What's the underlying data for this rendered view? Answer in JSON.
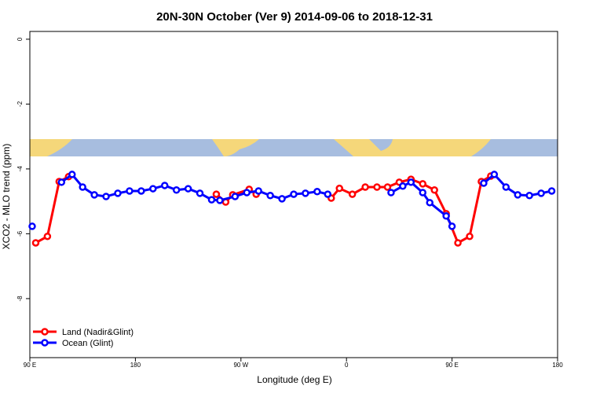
{
  "chart_data": {
    "type": "line",
    "title": "20N-30N October (Ver 9)   2014-09-06 to 2018-12-31",
    "x_label": "Longitude (deg E)",
    "y_label": "XCO2 - MLO trend (ppm)",
    "xlim": [
      90,
      540
    ],
    "xticks": [
      {
        "value": 90,
        "label": "90 E"
      },
      180,
      {
        "value": 270,
        "label": "90 W"
      },
      {
        "value": 360,
        "label": "0"
      },
      {
        "value": 450,
        "label": "90 E"
      },
      {
        "value": 540,
        "label": "180"
      }
    ],
    "ylim": [
      -9.82,
      0.24
    ],
    "yticks": [
      0,
      -2,
      -4,
      -6,
      -8
    ],
    "legend": "bottom-left",
    "series": [
      {
        "name": "Land (Nadir&Glint)",
        "color": "#ff0000",
        "x": [
          95,
          105,
          115,
          123,
          null,
          249,
          257,
          263,
          277,
          283,
          null,
          347,
          354,
          365,
          376,
          386,
          395,
          405,
          415,
          425,
          435,
          445,
          455,
          465,
          475,
          483
        ],
        "values": [
          -6.28,
          -6.08,
          -4.39,
          -4.24,
          null,
          -4.78,
          -5.02,
          -4.8,
          -4.63,
          -4.78,
          null,
          -4.9,
          -4.6,
          -4.78,
          -4.56,
          -4.56,
          -4.56,
          -4.41,
          -4.32,
          -4.46,
          -4.65,
          -5.38,
          -6.28,
          -6.08,
          -4.39,
          -4.22
        ]
      },
      {
        "name": "Ocean (Glint)",
        "color": "#0000ff",
        "x": [
          92,
          null,
          117,
          126,
          135,
          145,
          155,
          165,
          175,
          185,
          195,
          205,
          215,
          225,
          235,
          245,
          252,
          265,
          275,
          285,
          295,
          305,
          315,
          325,
          335,
          344,
          null,
          398,
          408,
          415,
          425,
          431,
          445,
          450,
          null,
          477,
          486,
          496,
          506,
          516,
          526,
          535
        ],
        "values": [
          -5.77,
          null,
          -4.41,
          -4.17,
          -4.56,
          -4.8,
          -4.85,
          -4.75,
          -4.68,
          -4.68,
          -4.61,
          -4.51,
          -4.65,
          -4.61,
          -4.75,
          -4.95,
          -4.97,
          -4.85,
          -4.73,
          -4.68,
          -4.82,
          -4.92,
          -4.78,
          -4.75,
          -4.7,
          -4.78,
          null,
          -4.73,
          -4.53,
          -4.41,
          -4.73,
          -5.04,
          -5.45,
          -5.77,
          null,
          -4.44,
          -4.17,
          -4.56,
          -4.8,
          -4.82,
          -4.75,
          -4.68
        ]
      }
    ]
  }
}
